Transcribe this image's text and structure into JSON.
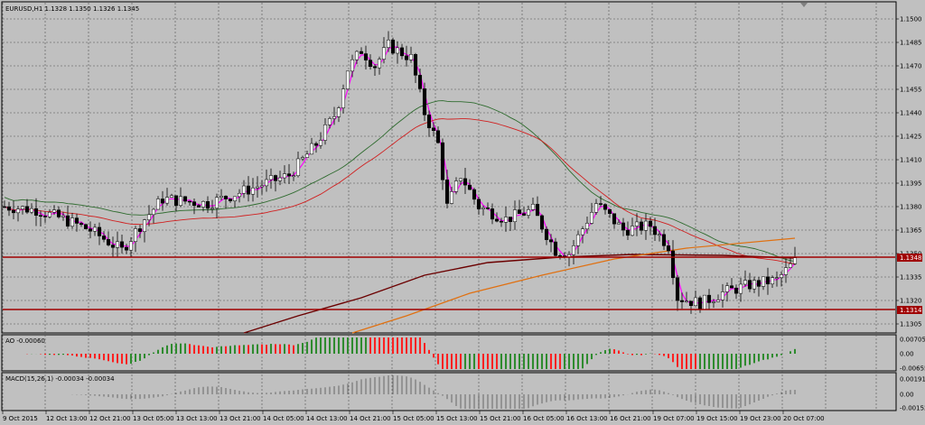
{
  "header": {
    "symbol_info": "EURUSD,H1  1.1328 1.1350 1.1326 1.1345"
  },
  "price_axis": {
    "ticks": [
      "1.1500",
      "1.1485",
      "1.1470",
      "1.1455",
      "1.1440",
      "1.1425",
      "1.1410",
      "1.1395",
      "1.1380",
      "1.1365",
      "1.1350",
      "1.1335",
      "1.1320",
      "1.1305"
    ],
    "current_price_label": "1.1348",
    "current_price_label2": "1.1345",
    "support_label": "1.1314"
  },
  "ao_panel": {
    "title": "AO -0.00060",
    "ticks": [
      "0.00705",
      "0.00",
      "-0.00655"
    ]
  },
  "macd_panel": {
    "title": "MACD(15,26,1) -0.00034 -0.00034",
    "ticks": [
      "0.00191",
      "0.00",
      "-0.00152"
    ]
  },
  "time_axis": {
    "labels": [
      "9 Oct 2015",
      "12 Oct 13:00",
      "12 Oct 21:00",
      "13 Oct 05:00",
      "13 Oct 13:00",
      "13 Oct 21:00",
      "14 Oct 05:00",
      "14 Oct 13:00",
      "14 Oct 21:00",
      "15 Oct 05:00",
      "15 Oct 13:00",
      "15 Oct 21:00",
      "16 Oct 05:00",
      "16 Oct 13:00",
      "16 Oct 21:00",
      "19 Oct 07:00",
      "19 Oct 15:00",
      "19 Oct 23:00",
      "20 Oct 07:00"
    ]
  },
  "colors": {
    "background": "#c0c0c0",
    "bull": "#ffffff",
    "bear": "#000000",
    "ma_fast": "#ff00ff",
    "ma_green": "#2e6b2e",
    "ma_red": "#d02020",
    "ma_orange": "#e07010",
    "ma_maroon": "#6b0000",
    "level_line": "#a00000",
    "ao_up": "#2e8b2e",
    "ao_down": "#ff2020"
  }
}
